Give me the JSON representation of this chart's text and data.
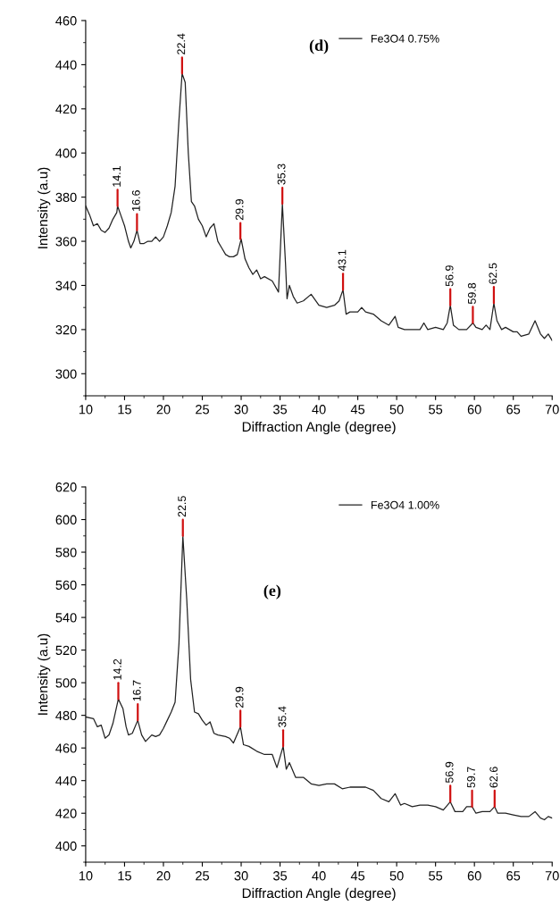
{
  "chart_data": [
    {
      "type": "line",
      "xlabel": "Diffraction Angle (degree)",
      "ylabel": "Intensity (a.u)",
      "xlim": [
        10,
        70
      ],
      "xticks": [
        10,
        15,
        20,
        25,
        30,
        35,
        40,
        45,
        50,
        55,
        60,
        65,
        70
      ],
      "ylim": [
        290,
        460
      ],
      "yticks": [
        300,
        320,
        340,
        360,
        380,
        400,
        420,
        440,
        460
      ],
      "grid": false,
      "legend": "top right",
      "marker": "none",
      "line_style": "solid",
      "series": [
        {
          "name": "Fe3O4 0.75%",
          "color": "#222222",
          "x": [
            10,
            10.5,
            11,
            11.5,
            12,
            12.5,
            13,
            13.5,
            14,
            14.1,
            14.5,
            15,
            15.5,
            15.8,
            16.2,
            16.6,
            17,
            17.5,
            18,
            18.5,
            19,
            19.5,
            20,
            20.5,
            21,
            21.5,
            22,
            22.4,
            22.8,
            23.2,
            23.6,
            24,
            24.5,
            25,
            25.5,
            26,
            26.5,
            27,
            27.5,
            28,
            28.5,
            29,
            29.5,
            30,
            30.5,
            31,
            31.5,
            32,
            32.5,
            33,
            34,
            34.8,
            35.3,
            35.7,
            35.9,
            36.2,
            36.7,
            37.2,
            38,
            39,
            40,
            41,
            42,
            42.6,
            43.1,
            43.5,
            44,
            45,
            45.5,
            46,
            47,
            48,
            49,
            49.8,
            50.2,
            51,
            52,
            53,
            53.5,
            54,
            55,
            56,
            56.5,
            56.9,
            57.3,
            58,
            59,
            59.8,
            60.2,
            61,
            61.5,
            62,
            62.5,
            62.9,
            63.5,
            64,
            65,
            65.5,
            66,
            67,
            67.8,
            68.5,
            69,
            69.5,
            70
          ],
          "values": [
            376,
            372,
            367,
            368,
            365,
            364,
            366,
            370,
            373,
            376,
            372,
            367,
            360,
            357,
            360,
            365,
            359,
            359,
            360,
            360,
            362,
            360,
            362,
            367,
            373,
            385,
            415,
            436,
            432,
            400,
            378,
            376,
            370,
            367,
            362,
            366,
            368,
            360,
            357,
            354,
            353,
            353,
            354,
            361,
            352,
            348,
            345,
            347,
            343,
            344,
            342,
            337,
            377,
            350,
            334,
            340,
            335,
            332,
            333,
            336,
            331,
            330,
            331,
            333,
            338,
            327,
            328,
            328,
            330,
            328,
            327,
            324,
            322,
            326,
            321,
            320,
            320,
            320,
            323,
            320,
            321,
            320,
            323,
            331,
            322,
            320,
            320,
            323,
            321,
            320,
            322,
            320,
            332,
            324,
            320,
            321,
            319,
            319,
            317,
            318,
            324,
            318,
            316,
            318,
            315
          ]
        }
      ],
      "annotations": [
        "(d)",
        {
          "text": "14.1",
          "x": 14.1,
          "y": 376
        },
        {
          "text": "16.6",
          "x": 16.6,
          "y": 365
        },
        {
          "text": "22.4",
          "x": 22.4,
          "y": 436
        },
        {
          "text": "29.9",
          "x": 29.9,
          "y": 361
        },
        {
          "text": "35.3",
          "x": 35.3,
          "y": 377
        },
        {
          "text": "43.1",
          "x": 43.1,
          "y": 338
        },
        {
          "text": "56.9",
          "x": 56.9,
          "y": 331
        },
        {
          "text": "59.8",
          "x": 59.8,
          "y": 323
        },
        {
          "text": "62.5",
          "x": 62.5,
          "y": 332
        }
      ]
    },
    {
      "type": "line",
      "xlabel": "Diffraction Angle (degree)",
      "ylabel": "Intensity (a.u)",
      "xlim": [
        10,
        70
      ],
      "xticks": [
        10,
        15,
        20,
        25,
        30,
        35,
        40,
        45,
        50,
        55,
        60,
        65,
        70
      ],
      "ylim": [
        390,
        620
      ],
      "yticks": [
        400,
        420,
        440,
        460,
        480,
        500,
        520,
        540,
        560,
        580,
        600,
        620
      ],
      "grid": false,
      "legend": "top right",
      "marker": "none",
      "line_style": "solid",
      "series": [
        {
          "name": "Fe3O4 1.00%",
          "color": "#222222",
          "x": [
            10,
            11,
            11.5,
            12,
            12.5,
            13,
            13.5,
            14.2,
            14.8,
            15.2,
            15.5,
            16,
            16.7,
            17.2,
            17.7,
            18.5,
            19,
            19.5,
            20,
            20.5,
            21,
            21.5,
            22,
            22.5,
            23,
            23.5,
            24,
            24.5,
            25,
            25.5,
            26,
            26.5,
            27,
            28,
            28.5,
            29,
            29.9,
            30.3,
            31,
            32,
            33,
            34,
            34.6,
            35.4,
            35.8,
            36.2,
            37,
            38,
            39,
            40,
            41,
            42,
            43,
            44,
            45,
            46,
            47,
            48,
            49,
            49.8,
            50.5,
            51,
            52,
            53,
            54,
            55,
            56,
            56.9,
            57.5,
            58.5,
            59,
            59.7,
            60.2,
            61,
            62,
            62.6,
            63,
            64,
            65,
            66,
            67,
            67.8,
            68.5,
            69,
            69.5,
            70
          ],
          "values": [
            479,
            478,
            473,
            474,
            466,
            468,
            475,
            490,
            484,
            473,
            468,
            469,
            477,
            468,
            464,
            468,
            467,
            468,
            472,
            477,
            482,
            488,
            524,
            590,
            551,
            502,
            482,
            481,
            477,
            474,
            476,
            469,
            468,
            467,
            466,
            463,
            473,
            462,
            461,
            458,
            456,
            456,
            448,
            461,
            447,
            451,
            442,
            442,
            438,
            437,
            438,
            438,
            435,
            436,
            436,
            436,
            434,
            429,
            427,
            432,
            425,
            426,
            424,
            425,
            425,
            424,
            422,
            427,
            421,
            421,
            424,
            424,
            420,
            421,
            421,
            424,
            420,
            420,
            419,
            418,
            418,
            421,
            417,
            416,
            418,
            417
          ]
        }
      ],
      "annotations": [
        "(e)",
        {
          "text": "14.2",
          "x": 14.2,
          "y": 490
        },
        {
          "text": "16.7",
          "x": 16.7,
          "y": 477
        },
        {
          "text": "22.5",
          "x": 22.5,
          "y": 590
        },
        {
          "text": "29.9",
          "x": 29.9,
          "y": 473
        },
        {
          "text": "35.4",
          "x": 35.4,
          "y": 461
        },
        {
          "text": "56.9",
          "x": 56.9,
          "y": 427
        },
        {
          "text": "59.7",
          "x": 59.7,
          "y": 424
        },
        {
          "text": "62.6",
          "x": 62.6,
          "y": 424
        }
      ]
    }
  ]
}
